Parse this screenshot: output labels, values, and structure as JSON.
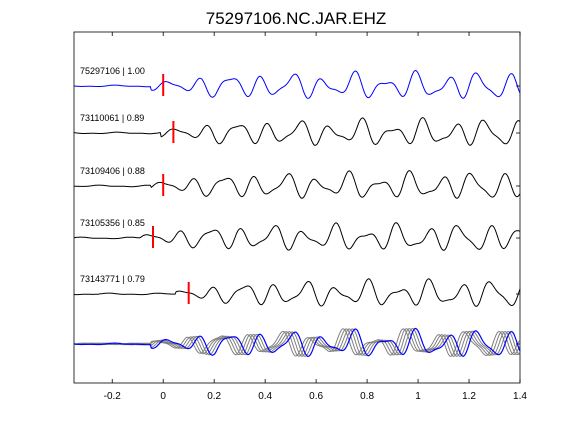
{
  "chart_data": {
    "type": "line",
    "title": "75297106.NC.JAR.EHZ",
    "xlabel": "",
    "ylabel": "",
    "xlim": [
      -0.35,
      1.4
    ],
    "x_ticks": [
      "-0.2",
      "0",
      "0.2",
      "0.4",
      "0.6",
      "0.8",
      "1",
      "1.2",
      "1.4"
    ],
    "x_tick_values": [
      -0.2,
      0,
      0.2,
      0.4,
      0.6,
      0.8,
      1.0,
      1.2,
      1.4
    ],
    "grid": false,
    "colors": {
      "reference": "#0000ff",
      "trace": "#000000",
      "pick": "#ff0000",
      "overlay": "#7f7f7f"
    },
    "series": [
      {
        "name": "75297106 | 1.00",
        "pick_time": 0.0,
        "color": "#0000ff",
        "seed": 1
      },
      {
        "name": "73110061 | 0.89",
        "pick_time": 0.04,
        "color": "#000000",
        "seed": 2
      },
      {
        "name": "73109406 | 0.88",
        "pick_time": 0.0,
        "color": "#000000",
        "seed": 3
      },
      {
        "name": "73105356 | 0.85",
        "pick_time": -0.04,
        "color": "#000000",
        "seed": 4
      },
      {
        "name": "73143771 | 0.79",
        "pick_time": 0.1,
        "color": "#000000",
        "seed": 5
      }
    ]
  }
}
